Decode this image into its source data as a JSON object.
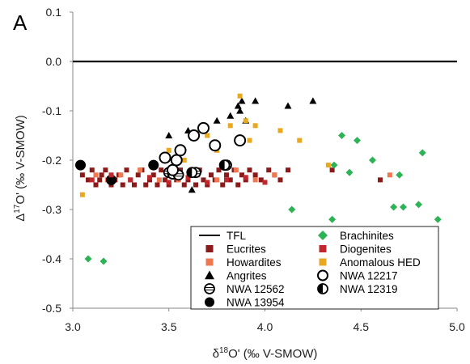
{
  "chart_data": {
    "type": "scatter",
    "panel_label": "A",
    "xlabel": "δ18O' (‰ V-SMOW)",
    "ylabel": "Δ17O' (‰ V-SMOW)",
    "xlim": [
      3.0,
      5.0
    ],
    "ylim": [
      -0.5,
      0.1
    ],
    "xticks": [
      "3.0",
      "3.5",
      "4.0",
      "4.5",
      "5.0"
    ],
    "yticks": [
      "0.1",
      "0.0",
      "-0.1",
      "-0.2",
      "-0.3",
      "-0.4",
      "-0.5"
    ],
    "grid": false,
    "legend_position": "bottom-center",
    "reference_line": {
      "name": "TFL",
      "y": 0.0,
      "color": "#000000"
    },
    "series": [
      {
        "name": "Eucrites",
        "marker": "square",
        "color": "#8b1a1a",
        "points": [
          [
            3.05,
            -0.23
          ],
          [
            3.08,
            -0.24
          ],
          [
            3.1,
            -0.22
          ],
          [
            3.12,
            -0.25
          ],
          [
            3.14,
            -0.24
          ],
          [
            3.15,
            -0.23
          ],
          [
            3.17,
            -0.22
          ],
          [
            3.2,
            -0.25
          ],
          [
            3.22,
            -0.24
          ],
          [
            3.24,
            -0.23
          ],
          [
            3.26,
            -0.25
          ],
          [
            3.28,
            -0.22
          ],
          [
            3.3,
            -0.24
          ],
          [
            3.32,
            -0.25
          ],
          [
            3.34,
            -0.23
          ],
          [
            3.36,
            -0.22
          ],
          [
            3.38,
            -0.25
          ],
          [
            3.4,
            -0.24
          ],
          [
            3.42,
            -0.23
          ],
          [
            3.44,
            -0.25
          ],
          [
            3.46,
            -0.22
          ],
          [
            3.48,
            -0.24
          ],
          [
            3.5,
            -0.25
          ],
          [
            3.52,
            -0.23
          ],
          [
            3.54,
            -0.24
          ],
          [
            3.56,
            -0.22
          ],
          [
            3.58,
            -0.25
          ],
          [
            3.6,
            -0.24
          ],
          [
            3.62,
            -0.23
          ],
          [
            3.64,
            -0.25
          ],
          [
            3.66,
            -0.22
          ],
          [
            3.68,
            -0.24
          ],
          [
            3.7,
            -0.25
          ],
          [
            3.72,
            -0.23
          ],
          [
            3.74,
            -0.24
          ],
          [
            3.76,
            -0.22
          ],
          [
            3.78,
            -0.25
          ],
          [
            3.8,
            -0.23
          ],
          [
            3.82,
            -0.24
          ],
          [
            3.84,
            -0.22
          ],
          [
            3.86,
            -0.25
          ],
          [
            3.88,
            -0.23
          ],
          [
            3.9,
            -0.24
          ],
          [
            3.92,
            -0.22
          ],
          [
            3.95,
            -0.23
          ],
          [
            3.98,
            -0.24
          ],
          [
            4.02,
            -0.22
          ],
          [
            4.05,
            -0.23
          ],
          [
            4.08,
            -0.24
          ],
          [
            4.12,
            -0.22
          ],
          [
            4.35,
            -0.22
          ],
          [
            4.6,
            -0.24
          ]
        ]
      },
      {
        "name": "Howardites",
        "marker": "square",
        "color": "#f07850",
        "points": [
          [
            3.12,
            -0.23
          ],
          [
            3.18,
            -0.24
          ],
          [
            3.25,
            -0.23
          ],
          [
            3.35,
            -0.22
          ],
          [
            3.45,
            -0.24
          ],
          [
            3.55,
            -0.24
          ],
          [
            3.65,
            -0.23
          ],
          [
            3.75,
            -0.24
          ],
          [
            3.85,
            -0.22
          ],
          [
            3.95,
            -0.24
          ],
          [
            4.05,
            -0.23
          ],
          [
            4.65,
            -0.23
          ]
        ]
      },
      {
        "name": "Angrites",
        "marker": "triangle",
        "color": "#000000",
        "points": [
          [
            3.5,
            -0.15
          ],
          [
            3.6,
            -0.14
          ],
          [
            3.62,
            -0.26
          ],
          [
            3.75,
            -0.12
          ],
          [
            3.82,
            -0.11
          ],
          [
            3.86,
            -0.09
          ],
          [
            3.87,
            -0.1
          ],
          [
            3.88,
            -0.08
          ],
          [
            3.9,
            -0.12
          ],
          [
            3.95,
            -0.08
          ],
          [
            4.12,
            -0.09
          ],
          [
            4.25,
            -0.08
          ]
        ]
      },
      {
        "name": "NWA 12562",
        "marker": "circle-striped",
        "color": "#000000",
        "points": [
          [
            3.5,
            -0.225
          ],
          [
            3.52,
            -0.228
          ],
          [
            3.55,
            -0.23
          ],
          [
            3.64,
            -0.225
          ],
          [
            3.8,
            -0.21
          ]
        ]
      },
      {
        "name": "NWA 13954",
        "marker": "circle-filled",
        "color": "#000000",
        "points": [
          [
            3.04,
            -0.21
          ],
          [
            3.2,
            -0.24
          ],
          [
            3.42,
            -0.21
          ]
        ]
      },
      {
        "name": "Brachinites",
        "marker": "diamond",
        "color": "#2db356",
        "points": [
          [
            3.08,
            -0.4
          ],
          [
            3.16,
            -0.405
          ],
          [
            4.14,
            -0.3
          ],
          [
            4.35,
            -0.32
          ],
          [
            4.36,
            -0.21
          ],
          [
            4.4,
            -0.15
          ],
          [
            4.44,
            -0.225
          ],
          [
            4.48,
            -0.16
          ],
          [
            4.56,
            -0.2
          ],
          [
            4.67,
            -0.295
          ],
          [
            4.7,
            -0.23
          ],
          [
            4.72,
            -0.295
          ],
          [
            4.8,
            -0.29
          ],
          [
            4.82,
            -0.185
          ],
          [
            4.9,
            -0.32
          ]
        ]
      },
      {
        "name": "Diogenites",
        "marker": "square",
        "color": "#c0282d",
        "points": [
          [
            3.1,
            -0.24
          ],
          [
            3.2,
            -0.23
          ],
          [
            3.3,
            -0.24
          ],
          [
            3.4,
            -0.235
          ],
          [
            3.5,
            -0.245
          ],
          [
            3.6,
            -0.235
          ],
          [
            3.7,
            -0.245
          ],
          [
            3.8,
            -0.24
          ],
          [
            3.9,
            -0.235
          ],
          [
            4.0,
            -0.245
          ]
        ]
      },
      {
        "name": "Anomalous HED",
        "marker": "square",
        "color": "#e8a820",
        "points": [
          [
            3.05,
            -0.27
          ],
          [
            3.5,
            -0.18
          ],
          [
            3.58,
            -0.2
          ],
          [
            3.7,
            -0.15
          ],
          [
            3.75,
            -0.18
          ],
          [
            3.82,
            -0.13
          ],
          [
            3.87,
            -0.07
          ],
          [
            3.9,
            -0.12
          ],
          [
            3.92,
            -0.16
          ],
          [
            3.95,
            -0.13
          ],
          [
            4.08,
            -0.14
          ],
          [
            4.18,
            -0.16
          ],
          [
            4.33,
            -0.21
          ]
        ]
      },
      {
        "name": "NWA 12217",
        "marker": "circle-open",
        "color": "#000000",
        "points": [
          [
            3.48,
            -0.195
          ],
          [
            3.52,
            -0.22
          ],
          [
            3.54,
            -0.2
          ],
          [
            3.56,
            -0.18
          ],
          [
            3.63,
            -0.15
          ],
          [
            3.68,
            -0.135
          ],
          [
            3.74,
            -0.17
          ],
          [
            3.87,
            -0.16
          ]
        ]
      },
      {
        "name": "NWA 12319",
        "marker": "circle-half",
        "color": "#000000",
        "points": [
          [
            3.62,
            -0.225
          ],
          [
            3.79,
            -0.21
          ]
        ]
      }
    ],
    "legend": {
      "rows": [
        [
          {
            "series": "TFL",
            "symbol": "line"
          },
          {
            "series": "Brachinites",
            "symbol": "diamond"
          }
        ],
        [
          {
            "series": "Eucrites",
            "symbol": "square"
          },
          {
            "series": "Diogenites",
            "symbol": "square"
          }
        ],
        [
          {
            "series": "Howardites",
            "symbol": "square"
          },
          {
            "series": "Anomalous HED",
            "symbol": "square"
          }
        ],
        [
          {
            "series": "Angrites",
            "symbol": "triangle"
          },
          {
            "series": "NWA 12217",
            "symbol": "circle-open"
          }
        ],
        [
          {
            "series": "NWA 12562",
            "symbol": "circle-striped"
          },
          {
            "series": "NWA 12319",
            "symbol": "circle-half"
          }
        ],
        [
          {
            "series": "NWA 13954",
            "symbol": "circle-filled"
          },
          null
        ]
      ]
    }
  }
}
